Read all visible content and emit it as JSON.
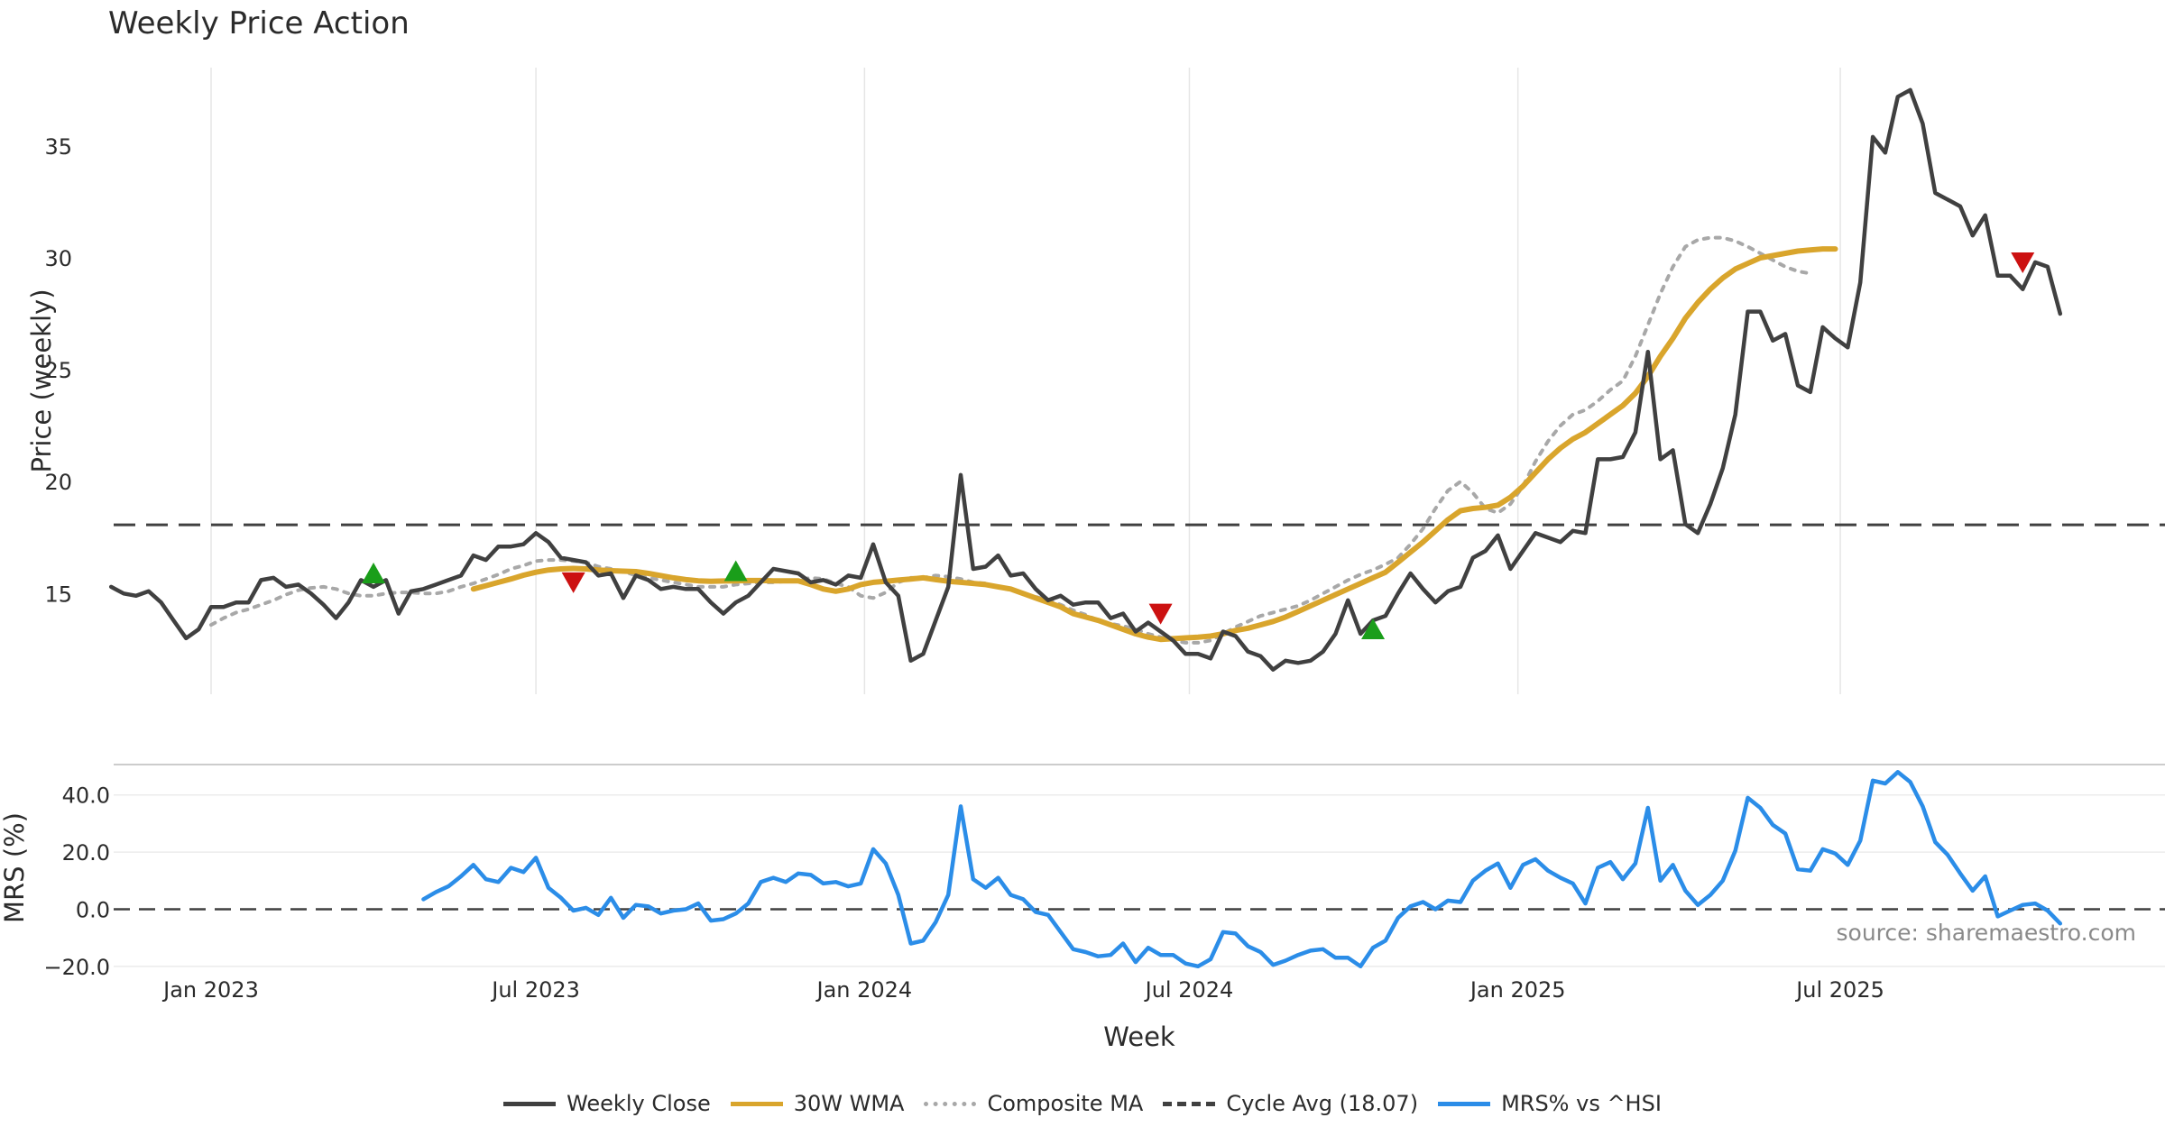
{
  "chart_data": {
    "type": "line",
    "title": "Weekly Price Action",
    "source_note": "source: sharemaestro.com",
    "x_axis": {
      "label": "Week",
      "range_weeks": [
        -10,
        159
      ],
      "ticks": [
        {
          "label": "Jan 2023",
          "week": 0
        },
        {
          "label": "Jul 2023",
          "week": 26
        },
        {
          "label": "Jan 2024",
          "week": 52.3
        },
        {
          "label": "Jul 2024",
          "week": 78.3
        },
        {
          "label": "Jan 2025",
          "week": 104.6
        },
        {
          "label": "Jul 2025",
          "week": 130.4
        }
      ]
    },
    "price_panel": {
      "ylabel": "Price (weekly)",
      "ylim": [
        10.5,
        38.5
      ],
      "yticks": [
        {
          "label": "15",
          "value": 15
        },
        {
          "label": "20",
          "value": 20
        },
        {
          "label": "25",
          "value": 25
        },
        {
          "label": "30",
          "value": 30
        },
        {
          "label": "35",
          "value": 35
        }
      ],
      "cycle_avg": 18.07,
      "series": [
        {
          "name": "Weekly Close",
          "color": "#404040",
          "start_week": -8,
          "values": [
            15.3,
            15.0,
            14.9,
            15.1,
            14.6,
            13.8,
            13.0,
            13.4,
            14.4,
            14.4,
            14.6,
            14.6,
            15.6,
            15.7,
            15.3,
            15.4,
            15.0,
            14.5,
            13.9,
            14.6,
            15.6,
            15.3,
            15.6,
            14.1,
            15.1,
            15.2,
            15.4,
            15.6,
            15.8,
            16.7,
            16.5,
            17.1,
            17.1,
            17.2,
            17.7,
            17.3,
            16.6,
            16.5,
            16.4,
            15.8,
            15.9,
            14.8,
            15.8,
            15.6,
            15.2,
            15.3,
            15.2,
            15.2,
            14.6,
            14.1,
            14.6,
            14.9,
            15.5,
            16.1,
            16.0,
            15.9,
            15.5,
            15.6,
            15.4,
            15.8,
            15.7,
            17.2,
            15.5,
            14.9,
            12.0,
            12.3,
            13.8,
            15.3,
            20.3,
            16.1,
            16.2,
            16.7,
            15.8,
            15.9,
            15.2,
            14.7,
            14.9,
            14.5,
            14.6,
            14.6,
            13.9,
            14.1,
            13.3,
            13.7,
            13.3,
            12.9,
            12.3,
            12.3,
            12.1,
            13.3,
            13.1,
            12.4,
            12.2,
            11.6,
            12.0,
            11.9,
            12.0,
            12.4,
            13.2,
            14.7,
            13.2,
            13.8,
            14.0,
            15.0,
            15.9,
            15.2,
            14.6,
            15.1,
            15.3,
            16.6,
            16.9,
            17.6,
            16.1,
            16.9,
            17.7,
            17.5,
            17.3,
            17.8,
            17.7,
            21.0,
            21.0,
            21.1,
            22.2,
            25.8,
            21.0,
            21.4,
            18.1,
            17.7,
            19.0,
            20.6,
            23.0,
            27.6,
            27.6,
            26.3,
            26.6,
            24.3,
            24.0,
            26.9,
            26.4,
            26.0,
            28.9,
            35.4,
            34.7,
            37.2,
            37.5,
            36.0,
            32.9,
            32.6,
            32.3,
            31.0,
            31.9,
            29.2,
            29.2,
            28.6,
            29.8,
            29.6,
            27.5
          ]
        },
        {
          "name": "30W WMA",
          "color": "#d9a52c",
          "start_week": 21,
          "values": [
            15.2,
            15.35,
            15.5,
            15.65,
            15.82,
            15.95,
            16.05,
            16.1,
            16.12,
            16.1,
            16.05,
            16.02,
            16.0,
            15.98,
            15.9,
            15.8,
            15.7,
            15.62,
            15.57,
            15.55,
            15.56,
            15.57,
            15.58,
            15.58,
            15.57,
            15.57,
            15.57,
            15.4,
            15.2,
            15.1,
            15.2,
            15.4,
            15.5,
            15.55,
            15.6,
            15.65,
            15.7,
            15.62,
            15.55,
            15.5,
            15.45,
            15.4,
            15.3,
            15.2,
            15.0,
            14.8,
            14.6,
            14.4,
            14.1,
            13.95,
            13.8,
            13.6,
            13.4,
            13.2,
            13.05,
            12.95,
            12.98,
            13.02,
            13.05,
            13.1,
            13.2,
            13.35,
            13.45,
            13.6,
            13.75,
            13.95,
            14.2,
            14.45,
            14.7,
            14.95,
            15.2,
            15.45,
            15.7,
            15.95,
            16.4,
            16.85,
            17.3,
            17.8,
            18.3,
            18.7,
            18.8,
            18.85,
            18.95,
            19.3,
            19.8,
            20.4,
            21.0,
            21.5,
            21.9,
            22.2,
            22.6,
            23.0,
            23.4,
            23.95,
            24.7,
            25.6,
            26.4,
            27.3,
            28.0,
            28.6,
            29.1,
            29.5,
            29.75,
            30.0,
            30.1,
            30.2,
            30.3,
            30.35,
            30.4,
            30.4
          ]
        },
        {
          "name": "Composite MA",
          "color": "#a8a8a8",
          "start_week": 0,
          "values": [
            13.6,
            13.9,
            14.15,
            14.3,
            14.5,
            14.7,
            14.95,
            15.15,
            15.25,
            15.3,
            15.2,
            15.0,
            14.9,
            14.9,
            15.0,
            15.05,
            15.05,
            15.0,
            15.0,
            15.1,
            15.3,
            15.45,
            15.65,
            15.85,
            16.1,
            16.25,
            16.45,
            16.5,
            16.5,
            16.45,
            16.4,
            16.2,
            16.1,
            16.0,
            15.8,
            15.7,
            15.6,
            15.5,
            15.4,
            15.3,
            15.3,
            15.3,
            15.4,
            15.45,
            15.5,
            15.5,
            15.55,
            15.6,
            15.7,
            15.65,
            15.45,
            15.3,
            14.9,
            14.8,
            15.05,
            15.5,
            15.7,
            15.7,
            15.8,
            15.75,
            15.65,
            15.5,
            15.45,
            15.3,
            15.15,
            15.0,
            14.85,
            14.7,
            14.5,
            14.25,
            14.05,
            13.8,
            13.65,
            13.55,
            13.4,
            13.2,
            13.05,
            12.9,
            12.8,
            12.8,
            12.9,
            13.2,
            13.5,
            13.75,
            14.0,
            14.15,
            14.3,
            14.45,
            14.7,
            15.0,
            15.3,
            15.6,
            15.85,
            16.05,
            16.3,
            16.6,
            17.2,
            17.9,
            18.8,
            19.6,
            20.0,
            19.5,
            18.8,
            18.6,
            19.0,
            19.8,
            20.9,
            21.8,
            22.5,
            23.0,
            23.2,
            23.6,
            24.1,
            24.5,
            25.6,
            27.0,
            28.4,
            29.6,
            30.5,
            30.8,
            30.9,
            30.9,
            30.75,
            30.5,
            30.2,
            29.9,
            29.6,
            29.4,
            29.3
          ]
        }
      ],
      "buy_markers": [
        {
          "week": 13,
          "value": 15.9
        },
        {
          "week": 42,
          "value": 16.0
        },
        {
          "week": 93,
          "value": 13.4
        }
      ],
      "sell_markers": [
        {
          "week": 29,
          "value": 15.5
        },
        {
          "week": 76,
          "value": 14.1
        },
        {
          "week": 145,
          "value": 29.8
        }
      ]
    },
    "mrs_panel": {
      "ylabel": "MRS (%)",
      "ylim": [
        -21,
        50
      ],
      "yticks": [
        {
          "label": "−20.0",
          "value": -20
        },
        {
          "label": "0.0",
          "value": 0
        },
        {
          "label": "20.0",
          "value": 20
        },
        {
          "label": "40.0",
          "value": 40
        }
      ],
      "series": [
        {
          "name": "MRS% vs ^HSI",
          "color": "#2b8de8",
          "start_week": 17,
          "values": [
            3.5,
            6.0,
            8.0,
            11.5,
            15.5,
            10.5,
            9.5,
            14.5,
            13.0,
            18.0,
            7.5,
            4.0,
            -0.5,
            0.5,
            -2.0,
            4.0,
            -3.0,
            1.5,
            1.0,
            -1.5,
            -0.5,
            0.0,
            2.0,
            -4.0,
            -3.5,
            -1.5,
            2.0,
            9.5,
            11.0,
            9.5,
            12.5,
            12.0,
            9.0,
            9.5,
            8.0,
            9.0,
            21.0,
            16.0,
            5.0,
            -12.0,
            -11.0,
            -4.5,
            5.0,
            36.0,
            10.5,
            7.5,
            11.0,
            5.0,
            3.5,
            -1.0,
            -2.0,
            -8.0,
            -14.0,
            -15.0,
            -16.5,
            -16.0,
            -12.0,
            -18.5,
            -13.5,
            -16.0,
            -16.0,
            -19.0,
            -20.0,
            -17.5,
            -8.0,
            -8.5,
            -13.0,
            -15.0,
            -19.5,
            -18.0,
            -16.0,
            -14.5,
            -14.0,
            -17.0,
            -17.0,
            -20.0,
            -13.5,
            -11.0,
            -3.0,
            1.0,
            2.5,
            0.0,
            3.0,
            2.5,
            10.0,
            13.5,
            16.0,
            7.5,
            15.5,
            17.5,
            13.5,
            11.0,
            9.0,
            2.0,
            14.5,
            16.5,
            10.5,
            16.0,
            35.5,
            10.0,
            15.5,
            6.5,
            1.5,
            5.0,
            10.0,
            20.5,
            39.0,
            35.5,
            29.5,
            26.5,
            14.0,
            13.5,
            21.0,
            19.5,
            15.5,
            24.0,
            45.0,
            44.0,
            48.0,
            44.5,
            36.0,
            23.5,
            19.0,
            12.5,
            6.5,
            11.5,
            -2.5,
            -0.5,
            1.5,
            2.0,
            -0.5,
            -5.0
          ]
        }
      ]
    },
    "legend": [
      {
        "label": "Weekly Close",
        "color": "#404040",
        "style": "solid"
      },
      {
        "label": "30W WMA",
        "color": "#d9a52c",
        "style": "solid"
      },
      {
        "label": "Composite MA",
        "color": "#a8a8a8",
        "style": "dotted"
      },
      {
        "label": "Cycle Avg (18.07)",
        "color": "#404040",
        "style": "dashed"
      },
      {
        "label": "MRS% vs ^HSI",
        "color": "#2b8de8",
        "style": "solid"
      }
    ]
  }
}
